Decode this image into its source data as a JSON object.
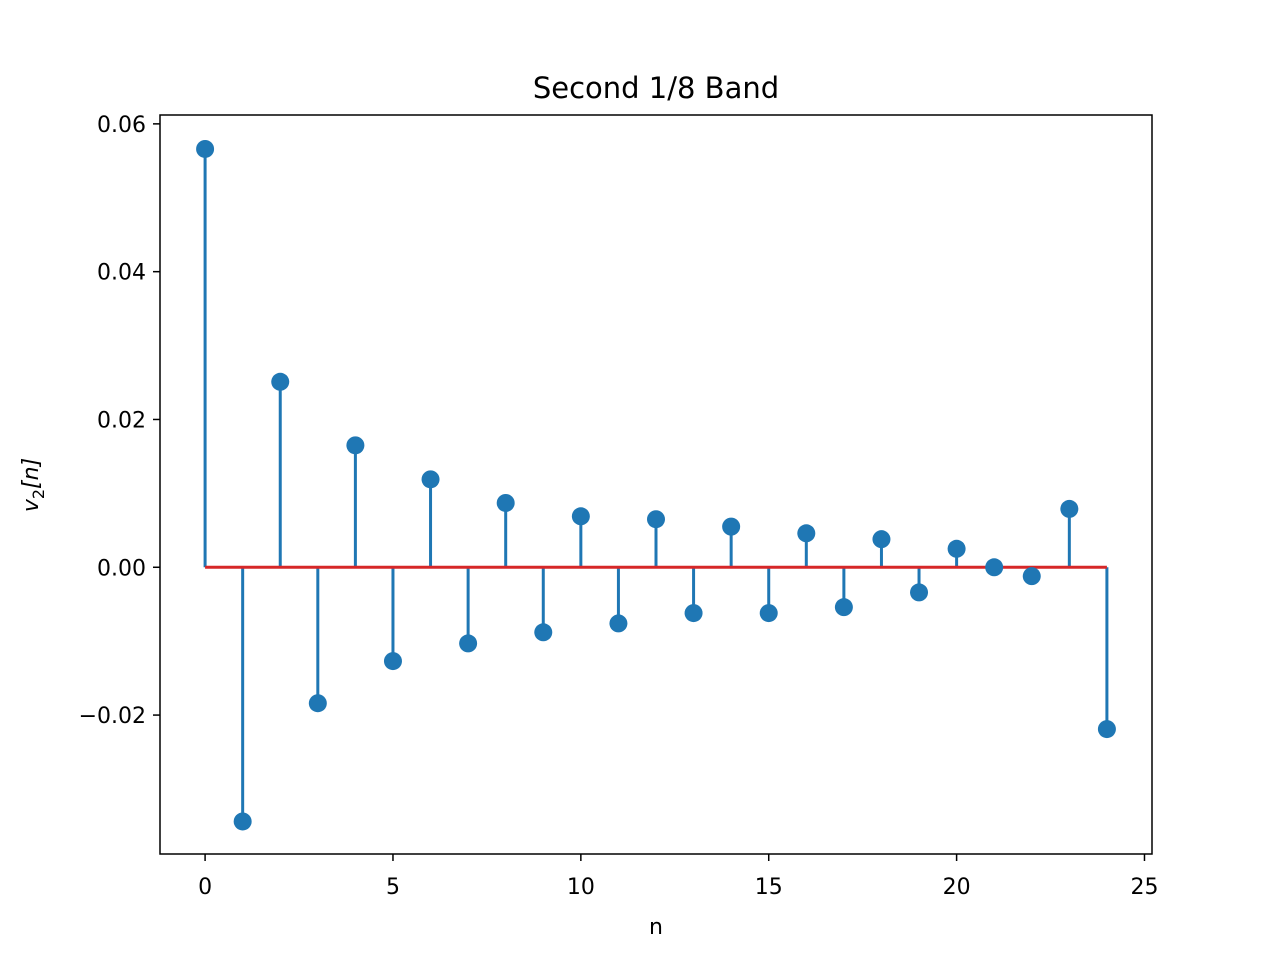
{
  "chart_data": {
    "type": "stem",
    "title": "Second 1/8 Band",
    "xlabel": "n",
    "ylabel_main": "v",
    "ylabel_sub": "2",
    "ylabel_tail": "[n]",
    "xlim": [
      -1.2,
      25.2
    ],
    "ylim": [
      -0.0388,
      0.0612
    ],
    "xticks": [
      0,
      5,
      10,
      15,
      20,
      25
    ],
    "xtick_labels": [
      "0",
      "5",
      "10",
      "15",
      "20",
      "25"
    ],
    "yticks": [
      -0.02,
      0.0,
      0.02,
      0.04,
      0.06
    ],
    "ytick_labels": [
      "−0.02",
      "0.00",
      "0.02",
      "0.04",
      "0.06"
    ],
    "x": [
      0,
      1,
      2,
      3,
      4,
      5,
      6,
      7,
      8,
      9,
      10,
      11,
      12,
      13,
      14,
      15,
      16,
      17,
      18,
      19,
      20,
      21,
      22,
      23,
      24
    ],
    "y": [
      0.0566,
      -0.0344,
      0.0251,
      -0.0184,
      0.0165,
      -0.0127,
      0.0119,
      -0.0103,
      0.0087,
      -0.0088,
      0.0069,
      -0.0076,
      0.0065,
      -0.0062,
      0.0055,
      -0.0062,
      0.0046,
      -0.0054,
      0.0038,
      -0.0034,
      0.0025,
      0.0,
      -0.0012,
      0.0079,
      -0.0219
    ],
    "baseline": 0.0,
    "grid": false,
    "colors": {
      "stem": "#1f77b4",
      "marker": "#1f77b4",
      "baseline": "#d62728",
      "axes": "#000000"
    }
  }
}
